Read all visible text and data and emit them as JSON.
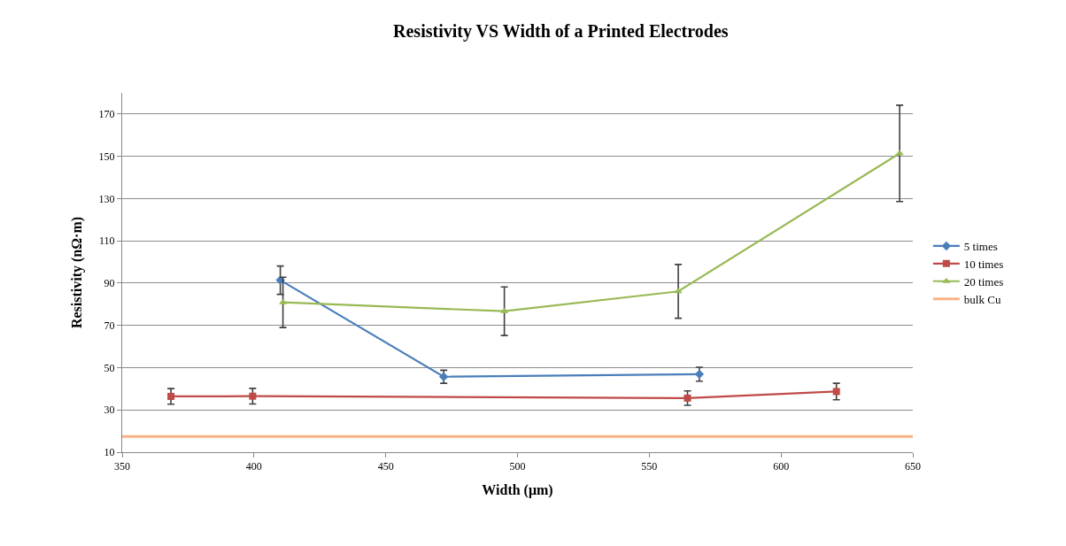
{
  "chart_data": {
    "type": "line",
    "title": "Resistivity VS Width of a Printed Electrodes",
    "xlabel": "Width (μm)",
    "ylabel": "Resistivity (nΩ·m)",
    "xlim": [
      350,
      650
    ],
    "xticks": [
      350,
      400,
      450,
      500,
      550,
      600,
      650
    ],
    "ylim": [
      10,
      180
    ],
    "yticks": [
      10,
      30,
      50,
      70,
      90,
      110,
      130,
      150,
      170
    ],
    "grid": "y",
    "legend": "right",
    "series": [
      {
        "name": "5 times",
        "color": "#4a7ebb",
        "marker": "diamond",
        "x": [
          410,
          472,
          569
        ],
        "values": [
          91.4,
          45.7,
          46.9
        ],
        "errors": [
          6.7,
          3.1,
          3.3
        ]
      },
      {
        "name": "10 times",
        "color": "#be4b48",
        "marker": "square",
        "x": [
          368.5,
          399.5,
          564.5,
          621
        ],
        "values": [
          36.4,
          36.5,
          35.6,
          38.7
        ],
        "errors": [
          3.7,
          3.7,
          3.4,
          3.9
        ]
      },
      {
        "name": "20 times",
        "color": "#98b954",
        "marker": "triangle",
        "x": [
          411,
          495,
          561,
          645
        ],
        "values": [
          80.9,
          76.7,
          86.1,
          151.4
        ],
        "errors": [
          11.9,
          11.5,
          12.7,
          22.8
        ]
      },
      {
        "name": "bulk Cu",
        "color": "#f9b384",
        "marker": "none",
        "x": [
          350,
          650
        ],
        "values": [
          17.4,
          17.4
        ]
      }
    ]
  }
}
